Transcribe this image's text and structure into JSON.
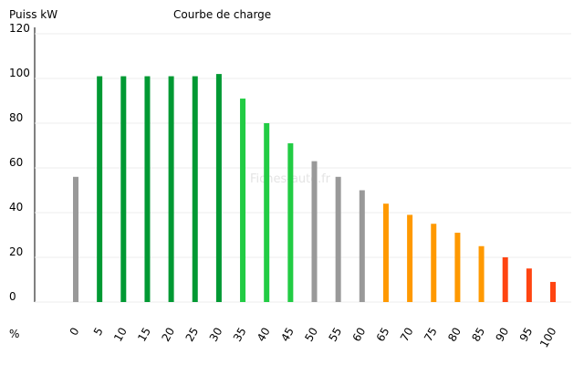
{
  "chart_data": {
    "type": "bar",
    "title": "Courbe de charge",
    "y_label": "Puiss kW",
    "x_label": "%",
    "watermark": "Fiches-auto.fr",
    "categories": [
      "0",
      "5",
      "10",
      "15",
      "20",
      "25",
      "30",
      "35",
      "40",
      "45",
      "50",
      "55",
      "60",
      "65",
      "70",
      "75",
      "80",
      "85",
      "90",
      "95",
      "100"
    ],
    "values": [
      56,
      101,
      101,
      101,
      101,
      101,
      102,
      91,
      80,
      71,
      63,
      56,
      50,
      44,
      39,
      35,
      31,
      25,
      20,
      15,
      9
    ],
    "colors": [
      "#999999",
      "#009933",
      "#009933",
      "#009933",
      "#009933",
      "#009933",
      "#009933",
      "#22cc44",
      "#22cc44",
      "#22cc44",
      "#999999",
      "#999999",
      "#999999",
      "#ff9900",
      "#ff9900",
      "#ff9900",
      "#ff9900",
      "#ff9900",
      "#ff4411",
      "#ff4411",
      "#ff4411"
    ],
    "ylim": [
      0,
      120
    ],
    "yticks": [
      0,
      20,
      40,
      60,
      80,
      100,
      120
    ],
    "grid": true
  }
}
